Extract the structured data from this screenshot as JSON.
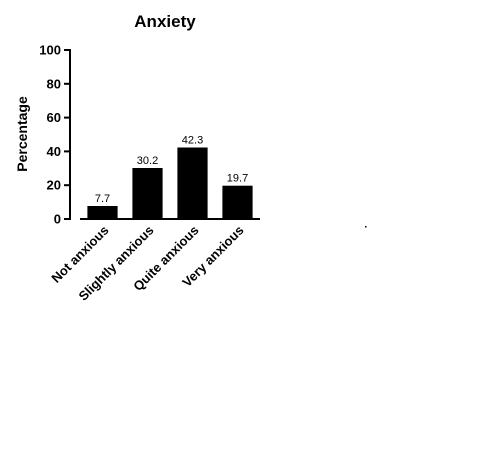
{
  "chart_data": {
    "type": "bar",
    "title": "Anxiety",
    "xlabel": "",
    "ylabel": "Percentage",
    "ylim": [
      0,
      100
    ],
    "yticks": [
      0,
      20,
      40,
      60,
      80,
      100
    ],
    "categories": [
      "Not anxious",
      "Slightly anxious",
      "Quite anxious",
      "Very anxious"
    ],
    "values": [
      7.7,
      30.2,
      42.3,
      19.7
    ],
    "data_labels": [
      "7.7",
      "30.2",
      "42.3",
      "19.7"
    ],
    "bar_color": "#000000",
    "grid": false,
    "legend": "none"
  }
}
